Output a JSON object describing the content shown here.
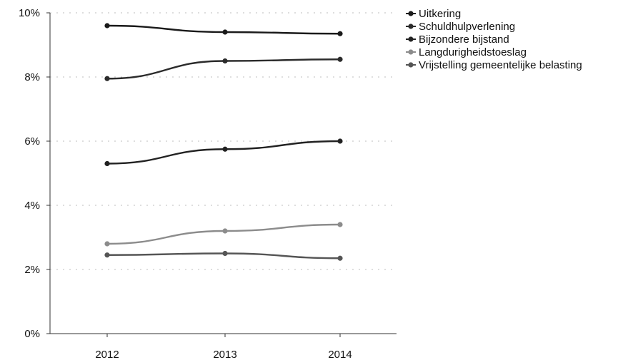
{
  "chart_data": {
    "type": "line",
    "x": [
      "2012",
      "2013",
      "2014"
    ],
    "y_ticks": [
      "0%",
      "2%",
      "4%",
      "6%",
      "8%",
      "10%"
    ],
    "ylim": [
      0,
      10
    ],
    "grid": true,
    "legend_placement": "top-right",
    "series": [
      {
        "name": "Uitkering",
        "values": [
          9.6,
          9.4,
          9.35
        ],
        "color": "#1a1a1a"
      },
      {
        "name": "Schuldhulpverlening",
        "values": [
          7.95,
          8.5,
          8.55
        ],
        "color": "#2b2b2b"
      },
      {
        "name": "Bijzondere bijstand",
        "values": [
          5.3,
          5.75,
          6.0
        ],
        "color": "#222222"
      },
      {
        "name": "Langdurigheidstoeslag",
        "values": [
          2.8,
          3.2,
          3.4
        ],
        "color": "#8c8c8c"
      },
      {
        "name": "Vrijstelling gemeentelijke belasting",
        "values": [
          2.45,
          2.5,
          2.35
        ],
        "color": "#555555"
      }
    ]
  }
}
